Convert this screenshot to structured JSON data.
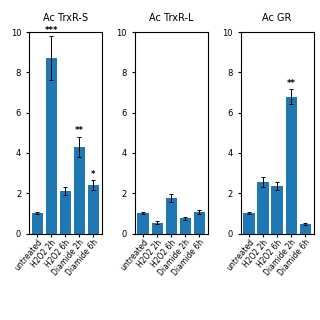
{
  "chart_data": [
    {
      "type": "bar",
      "title": "Ac TrxR-S",
      "categories": [
        "untreated",
        "H2O2 2h",
        "H2O2 6h",
        "Diamide 2h",
        "Diamide 6h"
      ],
      "values": [
        1.0,
        8.7,
        2.1,
        4.3,
        2.4
      ],
      "errors": [
        0.05,
        1.1,
        0.2,
        0.5,
        0.25
      ],
      "annotations": [
        null,
        "***",
        null,
        "**",
        "*"
      ],
      "ylim": [
        0,
        10
      ],
      "yticks": [
        0,
        2,
        4,
        6,
        8,
        10
      ],
      "grid": false
    },
    {
      "type": "bar",
      "title": "Ac TrxR-L",
      "categories": [
        "untreated",
        "H2O2 2h",
        "H2O2 6h",
        "Diamide 2h",
        "Diamide 6h"
      ],
      "values": [
        1.0,
        0.55,
        1.75,
        0.75,
        1.05
      ],
      "errors": [
        0.05,
        0.07,
        0.2,
        0.08,
        0.1
      ],
      "ylim": [
        0,
        10
      ],
      "yticks": [
        0,
        2,
        4,
        6,
        8,
        10
      ],
      "grid": false
    },
    {
      "type": "bar",
      "title": "Ac GR",
      "categories": [
        "untreated",
        "H2O2 2h",
        "H2O2 6h",
        "Diamide 2h",
        "Diamide 6h"
      ],
      "values": [
        1.0,
        2.55,
        2.35,
        6.8,
        0.5
      ],
      "errors": [
        0.05,
        0.25,
        0.2,
        0.35,
        0.05
      ],
      "annotations": [
        null,
        null,
        null,
        "**",
        null
      ],
      "ylim": [
        0,
        10
      ],
      "yticks": [
        0,
        2,
        4,
        6,
        8,
        10
      ],
      "grid": false
    }
  ]
}
